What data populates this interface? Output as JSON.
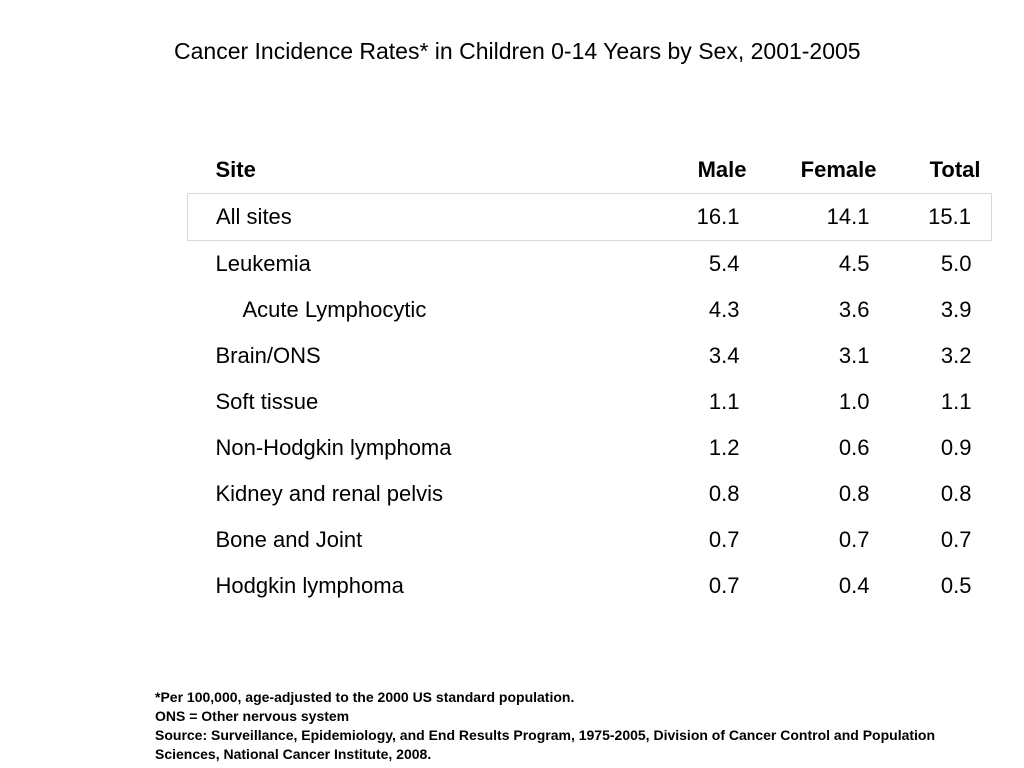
{
  "title": "Cancer Incidence Rates* in Children 0-14 Years by Sex, 2001-2005",
  "table": {
    "headers": [
      "Site",
      "Male",
      "Female",
      "Total"
    ],
    "rows": [
      {
        "site": "All sites",
        "male": "16.1",
        "female": "14.1",
        "total": "15.1"
      },
      {
        "site": "Leukemia",
        "male": "5.4",
        "female": "4.5",
        "total": "5.0"
      },
      {
        "site": "Acute Lymphocytic",
        "male": "4.3",
        "female": "3.6",
        "total": "3.9"
      },
      {
        "site": "Brain/ONS",
        "male": "3.4",
        "female": "3.1",
        "total": "3.2"
      },
      {
        "site": "Soft tissue",
        "male": "1.1",
        "female": "1.0",
        "total": "1.1"
      },
      {
        "site": "Non-Hodgkin lymphoma",
        "male": "1.2",
        "female": "0.6",
        "total": "0.9"
      },
      {
        "site": "Kidney and renal pelvis",
        "male": "0.8",
        "female": "0.8",
        "total": "0.8"
      },
      {
        "site": "Bone and Joint",
        "male": "0.7",
        "female": "0.7",
        "total": "0.7"
      },
      {
        "site": "Hodgkin lymphoma",
        "male": "0.7",
        "female": "0.4",
        "total": "0.5"
      }
    ]
  },
  "footnotes": [
    "*Per 100,000, age-adjusted to the 2000 US standard population.",
    "ONS = Other nervous system",
    "Source: Surveillance, Epidemiology, and End Results Program, 1975-2005, Division of Cancer Control and Population Sciences, National Cancer Institute, 2008."
  ]
}
